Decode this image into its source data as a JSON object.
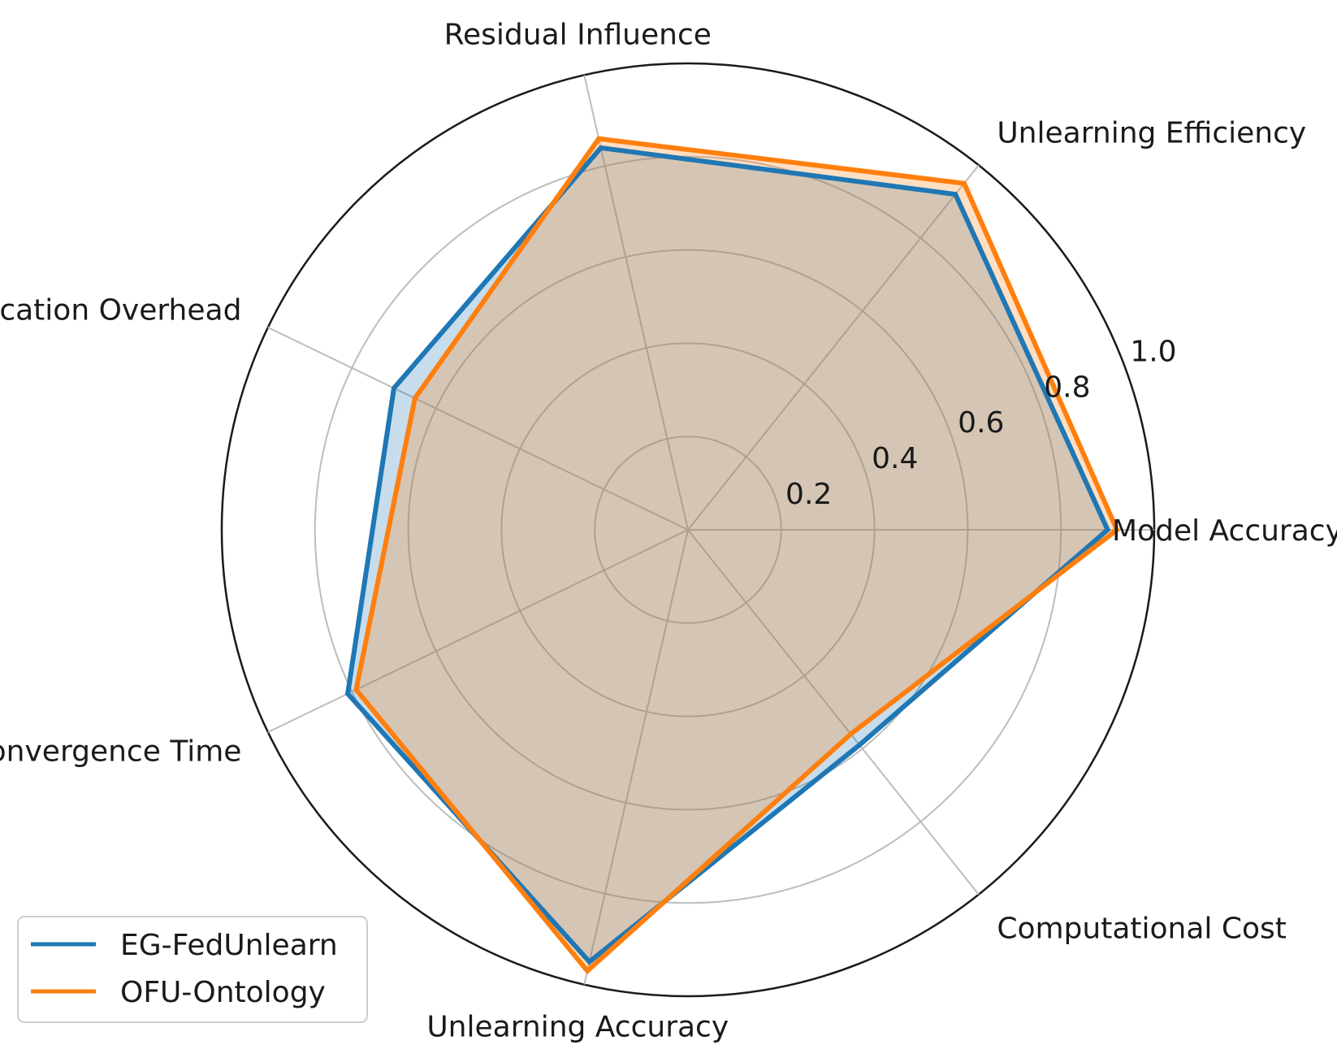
{
  "chart_data": {
    "type": "radar",
    "title": "",
    "categories": [
      "Model Accuracy",
      "Unlearning Efficiency",
      "Residual Influence",
      "Communication Overhead",
      "Convergence Time",
      "Unlearning Accuracy",
      "Computational Cost"
    ],
    "rlim": [
      0,
      1.0
    ],
    "rticks": [
      0.2,
      0.4,
      0.6,
      0.8,
      1.0
    ],
    "rtick_labels": [
      "0.2",
      "0.4",
      "0.6",
      "0.8",
      "1.0"
    ],
    "grid": true,
    "legend_position": "bottom-left",
    "series": [
      {
        "name": "EG-FedUnlearn",
        "color": "#1f77b4",
        "fill_color": "#1f77b4",
        "values": [
          0.9,
          0.92,
          0.84,
          0.7,
          0.81,
          0.95,
          0.59
        ]
      },
      {
        "name": "OFU-Ontology",
        "color": "#ff7f0e",
        "fill_color": "#ff7f0e",
        "values": [
          0.92,
          0.95,
          0.86,
          0.65,
          0.79,
          0.97,
          0.56
        ]
      }
    ]
  }
}
